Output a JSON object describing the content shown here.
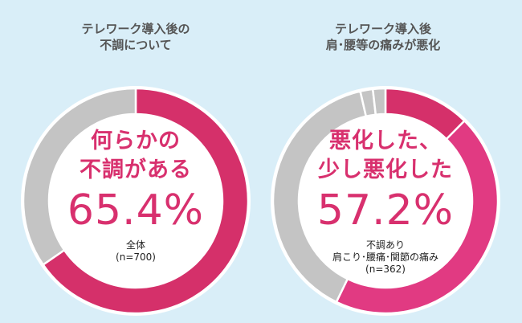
{
  "chart_data": [
    {
      "type": "pie",
      "title_lines": [
        "テレワーク導入後の",
        "不調について"
      ],
      "center_lines": [
        "何らかの",
        "不調がある"
      ],
      "center_value": "65.4%",
      "note_lines": [
        "全体",
        "(n=700)"
      ],
      "slices": [
        {
          "label": "何らかの不調がある",
          "value": 65.4,
          "color": "#d5306a"
        },
        {
          "label": "other",
          "value": 34.6,
          "color": "#c4c4c4"
        }
      ]
    },
    {
      "type": "pie",
      "title_lines": [
        "テレワーク導入後",
        "肩･腰等の痛みが悪化"
      ],
      "center_lines": [
        "悪化した、",
        "少し悪化した"
      ],
      "center_value": "57.2%",
      "note_lines": [
        "不調あり",
        "肩こり･腰痛･関節の痛み",
        "(n=362)"
      ],
      "slices": [
        {
          "label": "悪化した",
          "value": 12.4,
          "color": "#d5306a"
        },
        {
          "label": "少し悪化した",
          "value": 44.8,
          "color": "#e13a82"
        },
        {
          "label": "other",
          "value": 39.2,
          "color": "#c4c4c4"
        },
        {
          "label": "other",
          "value": 1.8,
          "color": "#c4c4c4"
        },
        {
          "label": "other",
          "value": 1.8,
          "color": "#c4c4c4"
        }
      ]
    }
  ]
}
